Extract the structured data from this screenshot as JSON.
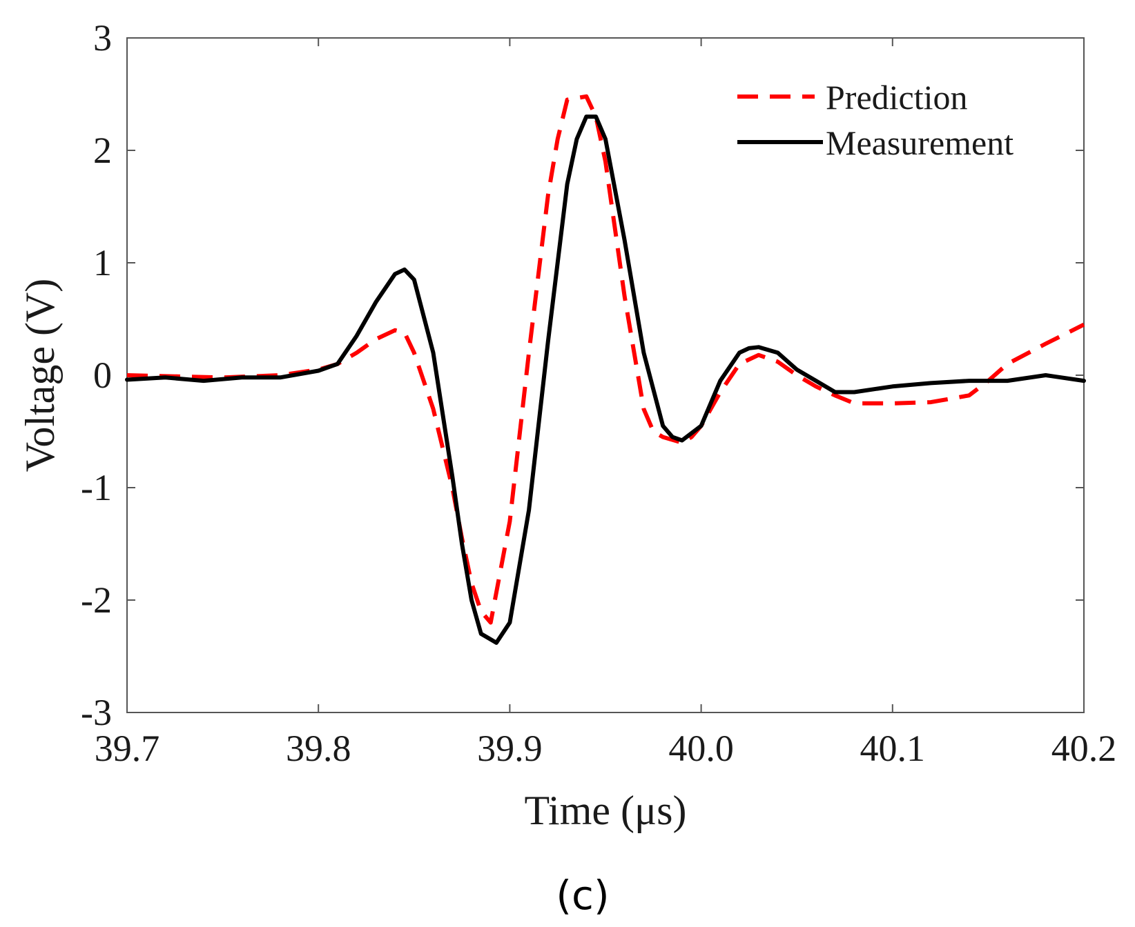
{
  "chart_data": {
    "type": "line",
    "title": "",
    "xlabel": "Time (μs)",
    "ylabel": "Voltage (V)",
    "xlim": [
      39.7,
      40.2
    ],
    "ylim": [
      -3,
      3
    ],
    "xticks": [
      39.7,
      39.8,
      39.9,
      40.0,
      40.1,
      40.2
    ],
    "xtick_labels": [
      "39.7",
      "39.8",
      "39.9",
      "40.0",
      "40.1",
      "40.2"
    ],
    "yticks": [
      -3,
      -2,
      -1,
      0,
      1,
      2,
      3
    ],
    "ytick_labels": [
      "-3",
      "-2",
      "-1",
      "0",
      "1",
      "2",
      "3"
    ],
    "grid": false,
    "legend_position": "top-right",
    "panel_label": "(c)",
    "series": [
      {
        "name": "Prediction",
        "color": "#ff0000",
        "style": "dashed",
        "x": [
          39.7,
          39.75,
          39.78,
          39.8,
          39.81,
          39.82,
          39.83,
          39.84,
          39.845,
          39.85,
          39.86,
          39.87,
          39.875,
          39.88,
          39.885,
          39.89,
          39.9,
          39.91,
          39.92,
          39.925,
          39.93,
          39.94,
          39.945,
          39.95,
          39.96,
          39.97,
          39.975,
          39.98,
          39.99,
          39.995,
          40.0,
          40.01,
          40.02,
          40.03,
          40.04,
          40.05,
          40.06,
          40.07,
          40.08,
          40.1,
          40.12,
          40.14,
          40.15,
          40.16,
          40.18,
          40.2
        ],
        "y": [
          0.0,
          -0.02,
          0.0,
          0.05,
          0.1,
          0.2,
          0.32,
          0.4,
          0.38,
          0.2,
          -0.3,
          -1.0,
          -1.45,
          -1.85,
          -2.1,
          -2.2,
          -1.3,
          0.2,
          1.6,
          2.1,
          2.45,
          2.48,
          2.3,
          1.9,
          0.7,
          -0.3,
          -0.5,
          -0.55,
          -0.6,
          -0.55,
          -0.45,
          -0.15,
          0.1,
          0.18,
          0.12,
          0.0,
          -0.1,
          -0.18,
          -0.25,
          -0.25,
          -0.24,
          -0.18,
          -0.05,
          0.1,
          0.28,
          0.45
        ]
      },
      {
        "name": "Measurement",
        "color": "#000000",
        "style": "solid",
        "x": [
          39.7,
          39.72,
          39.74,
          39.76,
          39.78,
          39.8,
          39.81,
          39.82,
          39.83,
          39.84,
          39.845,
          39.85,
          39.86,
          39.87,
          39.875,
          39.88,
          39.885,
          39.89,
          39.893,
          39.9,
          39.91,
          39.92,
          39.93,
          39.935,
          39.94,
          39.945,
          39.95,
          39.96,
          39.97,
          39.98,
          39.985,
          39.99,
          40.0,
          40.01,
          40.02,
          40.025,
          40.03,
          40.04,
          40.05,
          40.06,
          40.07,
          40.08,
          40.1,
          40.12,
          40.14,
          40.16,
          40.18,
          40.2
        ],
        "y": [
          -0.04,
          -0.02,
          -0.05,
          -0.02,
          -0.02,
          0.04,
          0.1,
          0.35,
          0.65,
          0.9,
          0.94,
          0.85,
          0.2,
          -0.9,
          -1.5,
          -2.0,
          -2.3,
          -2.35,
          -2.38,
          -2.2,
          -1.2,
          0.3,
          1.7,
          2.1,
          2.3,
          2.3,
          2.1,
          1.2,
          0.2,
          -0.45,
          -0.55,
          -0.58,
          -0.45,
          -0.05,
          0.2,
          0.24,
          0.25,
          0.2,
          0.05,
          -0.05,
          -0.15,
          -0.15,
          -0.1,
          -0.07,
          -0.05,
          -0.05,
          0.0,
          -0.05
        ]
      }
    ]
  }
}
